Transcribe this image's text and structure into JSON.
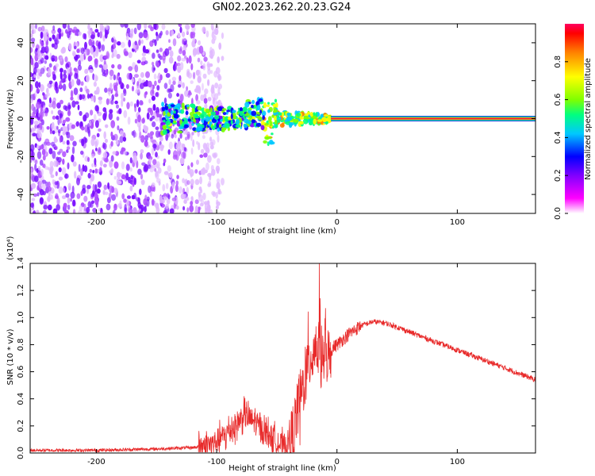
{
  "title": "GN02.2023.262.20.23.G24",
  "chart_data": [
    {
      "type": "heatmap",
      "name": "spectrogram",
      "xlabel": "Height of straight line (km)",
      "ylabel": "Frequency (Hz)",
      "xlim": [
        -255,
        165
      ],
      "ylim": [
        -50,
        50
      ],
      "xticks": [
        -200,
        -100,
        0,
        100
      ],
      "yticks": [
        -40,
        -20,
        0,
        20,
        40
      ],
      "colorbar": {
        "label": "Normalized spectral amplitude",
        "range": [
          0,
          1
        ],
        "ticks": [
          "0.0",
          "0.2",
          "0.4",
          "0.6",
          "0.8"
        ],
        "colormap": [
          "#ffffff",
          "#ff00ff",
          "#8000ff",
          "#0000ff",
          "#00c8ff",
          "#00ff80",
          "#80ff00",
          "#ffff00",
          "#ff8000",
          "#ff0000"
        ]
      },
      "features": [
        {
          "description": "noise",
          "x_range": [
            -255,
            -120
          ],
          "freq_range": [
            -50,
            50
          ],
          "amplitude": 0.15
        },
        {
          "description": "signal band",
          "x_range": [
            -145,
            -5
          ],
          "freq_center": 0,
          "amplitude": 0.4
        },
        {
          "description": "carrier line",
          "x_range": [
            -5,
            165
          ],
          "freq": 0,
          "amplitude": 0.9
        }
      ]
    },
    {
      "type": "line",
      "name": "snr",
      "xlabel": "Height of straight line (km)",
      "ylabel": "SNR (10 * v/v)",
      "y_multiplier_label": "(x10⁴)",
      "xlim": [
        -255,
        165
      ],
      "ylim": [
        0,
        1.4
      ],
      "xticks": [
        -200,
        -100,
        0,
        100
      ],
      "yticks": [
        "0.0",
        "0.2",
        "0.4",
        "0.6",
        "0.8",
        "1.0",
        "1.2",
        "1.4"
      ],
      "color": "#e82a2a",
      "x": [
        -255,
        -200,
        -150,
        -120,
        -105,
        -95,
        -85,
        -78,
        -72,
        -65,
        -55,
        -45,
        -38,
        -33,
        -28,
        -22,
        -18,
        -15,
        -12,
        -8,
        -3,
        0,
        10,
        20,
        30,
        40,
        50,
        70,
        100,
        130,
        165
      ],
      "y": [
        0.02,
        0.02,
        0.03,
        0.04,
        0.06,
        0.12,
        0.2,
        0.28,
        0.25,
        0.2,
        0.12,
        0.05,
        0.1,
        0.3,
        0.5,
        0.7,
        0.8,
        0.75,
        0.72,
        0.72,
        0.78,
        0.8,
        0.88,
        0.94,
        0.97,
        0.96,
        0.93,
        0.86,
        0.76,
        0.66,
        0.54
      ]
    }
  ]
}
